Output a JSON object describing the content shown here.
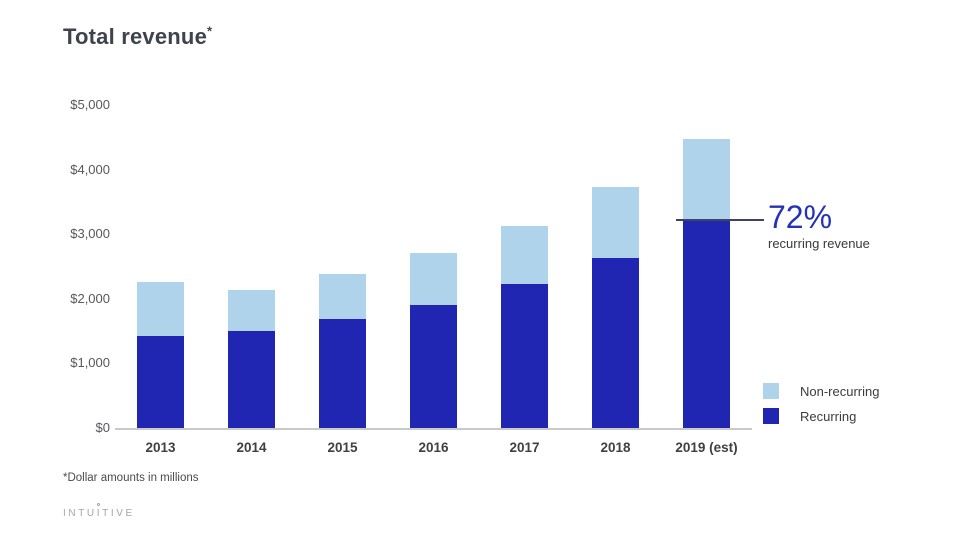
{
  "slide": {
    "title": "Total revenue",
    "title_superscript": "*",
    "footnote": "*Dollar amounts in millions",
    "logo": {
      "pre": "INTU",
      "ring_letter": "I",
      "post": "TIVE"
    }
  },
  "callout": {
    "value": "72%",
    "label": "recurring revenue"
  },
  "legend": [
    {
      "label": "Non-recurring",
      "color": "#aed3eb"
    },
    {
      "label": "Recurring",
      "color": "#2126b2"
    }
  ],
  "colors": {
    "recurring": "#2126b2",
    "non_recurring": "#aed3eb",
    "callout_text": "#2431b8",
    "callout_line": "#3c4366",
    "axis_line": "#c9c9c9",
    "title_text": "#3f434d"
  },
  "chart_data": {
    "type": "bar",
    "stacked": true,
    "title": "Total revenue*",
    "units": "Dollar amounts in millions",
    "categories": [
      "2013",
      "2014",
      "2015",
      "2016",
      "2017",
      "2018",
      "2019 (est)"
    ],
    "series": [
      {
        "name": "Recurring",
        "color": "#2126b2",
        "values": [
          1430,
          1500,
          1680,
          1910,
          2230,
          2630,
          3230
        ]
      },
      {
        "name": "Non-recurring",
        "color": "#aed3eb",
        "values": [
          835,
          630,
          705,
          795,
          900,
          1095,
          1250
        ]
      }
    ],
    "totals": [
      2265,
      2130,
      2385,
      2705,
      3130,
      3725,
      4480
    ],
    "xlabel": "",
    "ylabel": "",
    "ylim": [
      0,
      5000
    ],
    "y_ticks": [
      "$0",
      "$1,000",
      "$2,000",
      "$3,000",
      "$4,000",
      "$5,000"
    ],
    "gridlines": false,
    "legend_position": "right-bottom",
    "annotation": {
      "value": "72%",
      "label": "recurring revenue",
      "target_category": "2019 (est)",
      "target_value": 3230
    }
  }
}
